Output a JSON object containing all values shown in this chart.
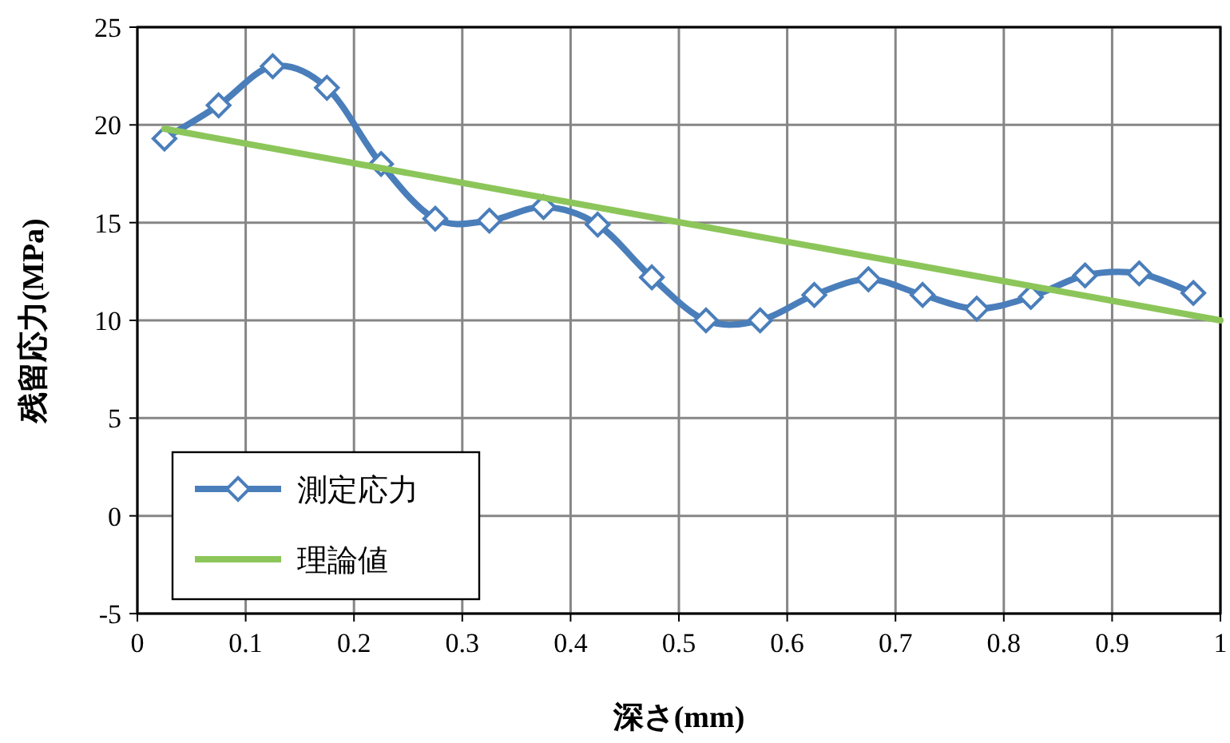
{
  "chart_data": {
    "type": "line",
    "xlabel": "深さ(mm)",
    "ylabel": "残留応力(MPa)",
    "xlim": [
      0,
      1
    ],
    "ylim": [
      -5,
      25
    ],
    "xticks": [
      0,
      0.1,
      0.2,
      0.3,
      0.4,
      0.5,
      0.6,
      0.7,
      0.8,
      0.9,
      1
    ],
    "yticks": [
      -5,
      0,
      5,
      10,
      15,
      20,
      25
    ],
    "grid": true,
    "legend": "bottom left",
    "line_style": "solid",
    "series": [
      {
        "name": "測定応力",
        "color": "#4a7ebb",
        "marker": "diamond",
        "x": [
          0.025,
          0.075,
          0.125,
          0.175,
          0.225,
          0.275,
          0.325,
          0.375,
          0.425,
          0.475,
          0.525,
          0.575,
          0.625,
          0.675,
          0.725,
          0.775,
          0.825,
          0.875,
          0.925,
          0.975
        ],
        "values": [
          19.3,
          21.0,
          23.0,
          21.9,
          18.0,
          15.2,
          15.1,
          15.8,
          14.9,
          12.2,
          10.0,
          10.0,
          11.3,
          12.1,
          11.3,
          10.6,
          11.2,
          12.3,
          12.4,
          11.4
        ]
      },
      {
        "name": "理論値",
        "color": "#8cc65a",
        "marker": "none",
        "x": [
          0.025,
          1
        ],
        "values": [
          19.8,
          10
        ]
      }
    ]
  }
}
